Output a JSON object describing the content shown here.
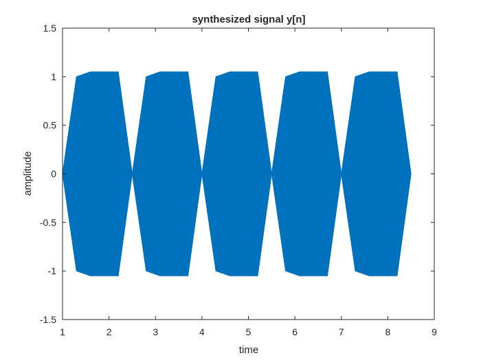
{
  "chart_data": {
    "type": "area",
    "title": "synthesized signal y[n]",
    "xlabel": "time",
    "ylabel": "amplitude",
    "xlim": [
      1,
      9
    ],
    "ylim": [
      -1.5,
      1.5
    ],
    "grid": false,
    "xticks": [
      1,
      2,
      3,
      4,
      5,
      6,
      7,
      8,
      9
    ],
    "yticks": [
      -1.5,
      -1,
      -0.5,
      0,
      0.5,
      1,
      1.5
    ],
    "xtick_labels": [
      "1",
      "2",
      "3",
      "4",
      "5",
      "6",
      "7",
      "8",
      "9"
    ],
    "ytick_labels": [
      "-1.5",
      "-1",
      "-0.5",
      "0",
      "0.5",
      "1",
      "1.5"
    ],
    "series": [
      {
        "color": "#0072BD",
        "envelopes": [
          {
            "x": [
              1.0,
              1.3,
              1.6,
              2.2,
              2.5
            ],
            "upper": [
              0,
              1.0,
              1.05,
              1.05,
              0
            ]
          },
          {
            "x": [
              2.5,
              2.8,
              3.1,
              3.7,
              4.0
            ],
            "upper": [
              0,
              1.0,
              1.05,
              1.05,
              0
            ]
          },
          {
            "x": [
              4.0,
              4.3,
              4.6,
              5.2,
              5.5
            ],
            "upper": [
              0,
              1.0,
              1.05,
              1.05,
              0
            ]
          },
          {
            "x": [
              5.5,
              5.8,
              6.1,
              6.7,
              7.0
            ],
            "upper": [
              0,
              1.0,
              1.05,
              1.05,
              0
            ]
          },
          {
            "x": [
              7.0,
              7.3,
              7.6,
              8.2,
              8.5
            ],
            "upper": [
              0,
              1.0,
              1.05,
              1.05,
              0
            ]
          }
        ]
      }
    ]
  }
}
